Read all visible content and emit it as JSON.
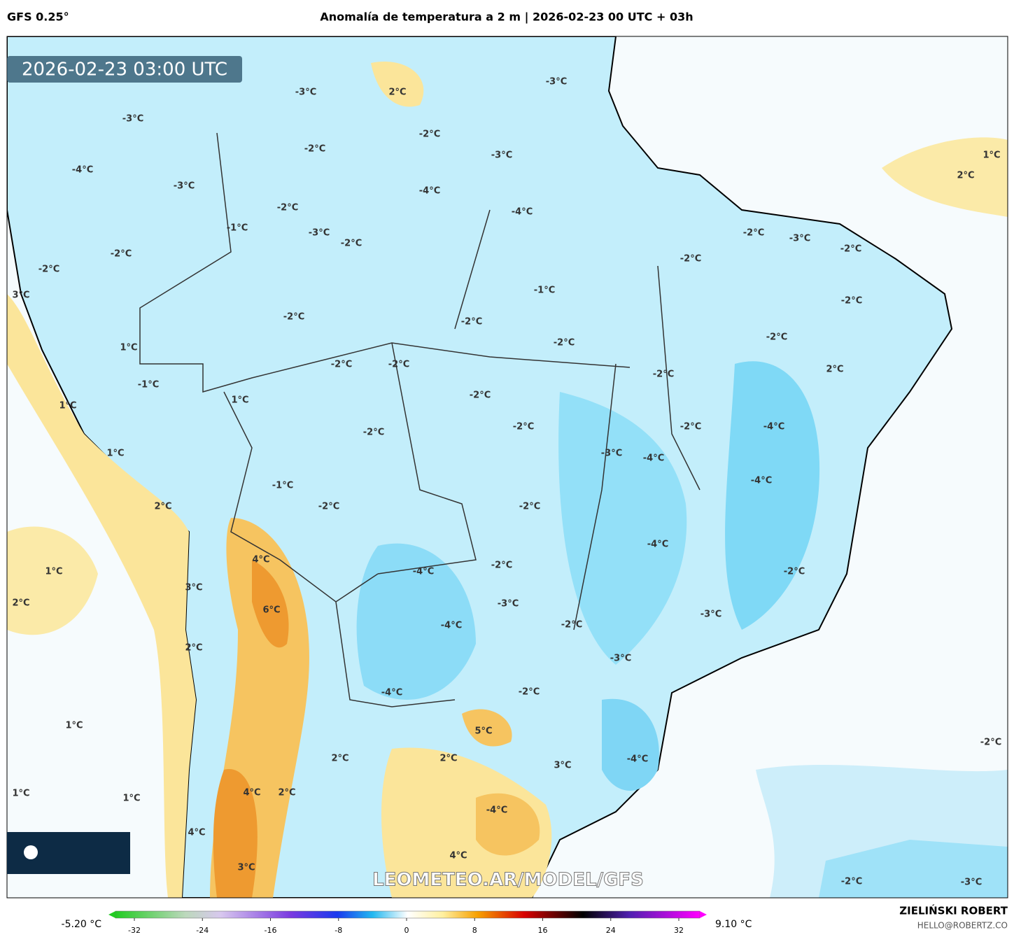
{
  "header": {
    "model": "GFS 0.25°",
    "title": "Anomalía de temperatura a 2 m | 2026-02-23 00 UTC + 03h"
  },
  "map": {
    "timestamp": "2026-02-23 03:00 UTC",
    "watermark": "LEOMETEO.AR/MODEL/GFS",
    "contour_labels": [
      "2°C",
      "-3°C",
      "-3°C",
      "-3°C",
      "-2°C",
      "-2°C",
      "-3°C",
      "-4°C",
      "-3°C",
      "-4°C",
      "-4°C",
      "-2°C",
      "-1°C",
      "-3°C",
      "-2°C",
      "-2°C",
      "-2°C",
      "3°C",
      "-1°C",
      "-2°C",
      "-2°C",
      "-2°C",
      "1°C",
      "-2°C",
      "-2°C",
      "-1°C",
      "1°C",
      "1°C",
      "-2°C",
      "-2°C",
      "-2°C",
      "1°C",
      "-3°C",
      "-4°C",
      "-1°C",
      "2°C",
      "-2°C",
      "-2°C",
      "-2°C",
      "-2°C",
      "-3°C",
      "-2°C",
      "-2°C",
      "-2°C",
      "2°C",
      "-2°C",
      "-2°C",
      "-4°C",
      "-4°C",
      "1°C",
      "2°C",
      "4°C",
      "-4°C",
      "-2°C",
      "-4°C",
      "-2°C",
      "1°C",
      "3°C",
      "2°C",
      "6°C",
      "-3°C",
      "-3°C",
      "-4°C",
      "-2°C",
      "2°C",
      "-3°C",
      "-4°C",
      "-2°C",
      "1°C",
      "5°C",
      "-2°C",
      "2°C",
      "2°C",
      "-4°C",
      "3°C",
      "1°C",
      "1°C",
      "4°C",
      "2°C",
      "-4°C",
      "4°C",
      "4°C",
      "3°C",
      "-2°C",
      "-3°C"
    ]
  },
  "colorbar": {
    "min_label": "-5.20 °C",
    "max_label": "9.10 °C",
    "range": [
      -32,
      32
    ],
    "ticks": [
      -32,
      -24,
      -16,
      -8,
      0,
      8,
      16,
      24,
      32
    ]
  },
  "footer": {
    "author": "ZIELIŃSKI ROBERT",
    "contact": "HELLO@ROBERTZ.CO"
  }
}
